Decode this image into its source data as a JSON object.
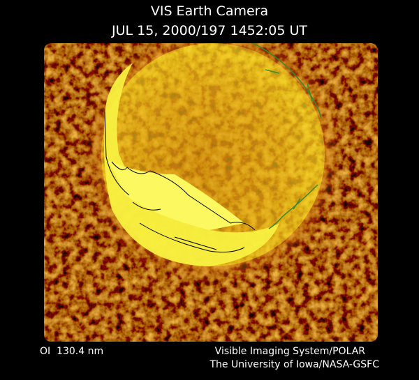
{
  "header": {
    "title": "VIS Earth Camera",
    "subtitle": "JUL 15, 2000/197 1452:05 UT"
  },
  "footer": {
    "wavelength": "OI  130.4 nm",
    "instrument": "Visible Imaging System/POLAR",
    "credit": "The University of Iowa/NASA-GSFC"
  }
}
